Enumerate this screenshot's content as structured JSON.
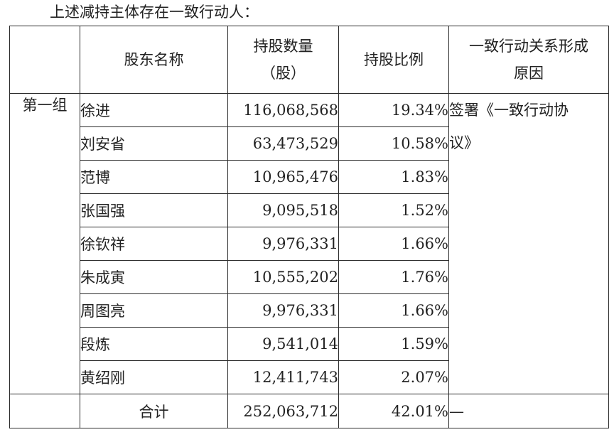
{
  "intro_text": "上述减持主体存在一致行动人：",
  "table": {
    "headers": {
      "group": "",
      "name": "股东名称",
      "shares_line1": "持股数量",
      "shares_line2": "（股）",
      "ratio": "持股比例",
      "reason_line1": "一致行动关系形成",
      "reason_line2": "原因"
    },
    "group_label": "第一组",
    "reason_line1": "签署《一致行动协",
    "reason_line2": "议》",
    "rows": [
      {
        "name": "徐进",
        "shares": "116,068,568",
        "ratio": "19.34%"
      },
      {
        "name": "刘安省",
        "shares": "63,473,529",
        "ratio": "10.58%"
      },
      {
        "name": "范博",
        "shares": "10,965,476",
        "ratio": "1.83%"
      },
      {
        "name": "张国强",
        "shares": "9,095,518",
        "ratio": "1.52%"
      },
      {
        "name": "徐钦祥",
        "shares": "9,976,331",
        "ratio": "1.66%"
      },
      {
        "name": "朱成寅",
        "shares": "10,555,202",
        "ratio": "1.76%"
      },
      {
        "name": "周图亮",
        "shares": "9,976,331",
        "ratio": "1.66%"
      },
      {
        "name": "段炼",
        "shares": "9,541,014",
        "ratio": "1.59%"
      },
      {
        "name": "黄绍刚",
        "shares": "12,411,743",
        "ratio": "2.07%"
      }
    ],
    "total": {
      "label": "合计",
      "shares": "252,063,712",
      "ratio": "42.01%",
      "reason": "—"
    }
  }
}
